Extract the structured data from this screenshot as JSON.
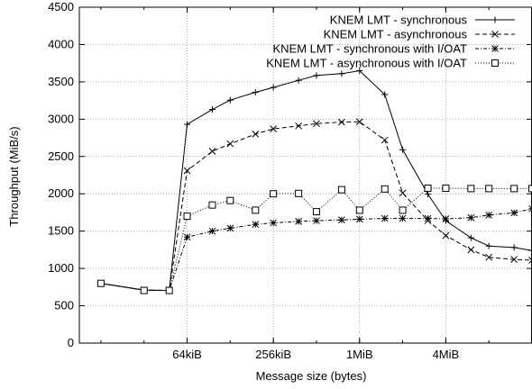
{
  "chart_data": {
    "type": "line",
    "xlabel": "Message size (bytes)",
    "ylabel": "Throughput (MiB/s)",
    "x_scale": "log2",
    "x_ticks": [
      {
        "value": 65536,
        "label": "64kiB"
      },
      {
        "value": 262144,
        "label": "256kiB"
      },
      {
        "value": 1048576,
        "label": "1MiB"
      },
      {
        "value": 4194304,
        "label": "4MiB"
      }
    ],
    "xlim": [
      11585,
      16777216
    ],
    "ylim": [
      0,
      4500
    ],
    "y_ticks": [
      0,
      500,
      1000,
      1500,
      2000,
      2500,
      3000,
      3500,
      4000,
      4500
    ],
    "grid": true,
    "legend_position": "top-right",
    "x": [
      16384,
      32768,
      49152,
      65536,
      98304,
      131072,
      196608,
      262144,
      393216,
      524288,
      786432,
      1048576,
      1572864,
      2097152,
      3145728,
      4194304,
      6291456,
      8388608,
      12582912,
      16777216
    ],
    "series": [
      {
        "name": "KNEM LMT - synchronous",
        "line_style": "solid",
        "marker": "plus",
        "values": [
          800,
          710,
          705,
          2930,
          3130,
          3255,
          3360,
          3425,
          3520,
          3585,
          3610,
          3650,
          3330,
          2590,
          1995,
          1640,
          1410,
          1300,
          1280,
          1240
        ]
      },
      {
        "name": "KNEM LMT - asynchronous",
        "line_style": "dashed",
        "marker": "cross",
        "values": [
          800,
          710,
          705,
          2310,
          2570,
          2670,
          2800,
          2870,
          2910,
          2940,
          2960,
          2965,
          2720,
          2010,
          1640,
          1440,
          1250,
          1150,
          1120,
          1110
        ]
      },
      {
        "name": "KNEM LMT - synchronous with I/OAT",
        "line_style": "dotted-dash",
        "marker": "star",
        "values": [
          800,
          710,
          705,
          1420,
          1500,
          1540,
          1590,
          1610,
          1630,
          1640,
          1650,
          1660,
          1670,
          1670,
          1670,
          1665,
          1680,
          1715,
          1745,
          1800
        ]
      },
      {
        "name": "KNEM LMT - asynchronous with I/OAT",
        "line_style": "dotted",
        "marker": "square",
        "values": [
          800,
          705,
          705,
          1700,
          1850,
          1910,
          1780,
          2000,
          2005,
          1760,
          2055,
          1780,
          2065,
          1780,
          2075,
          2075,
          2070,
          2070,
          2070,
          2070
        ]
      }
    ]
  }
}
